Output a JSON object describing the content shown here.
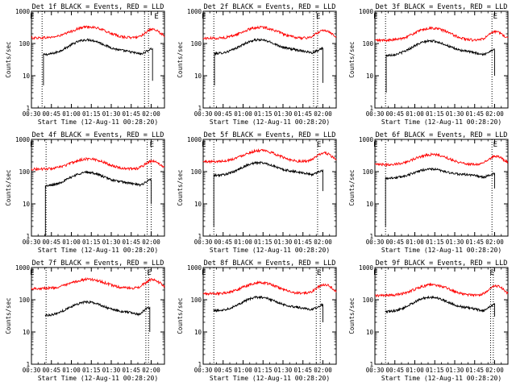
{
  "chart_data": [
    {
      "type": "line",
      "title": "Det 1f BLACK = Events, RED = LLD",
      "xlabel": "Start Time (12-Aug-11 00:28:20)",
      "ylabel": "Counts/sec",
      "yscale": "log",
      "ylim": [
        1,
        1000
      ],
      "yticks": [
        "1",
        "10",
        "100",
        "1000"
      ],
      "xticks": [
        "00:30",
        "00:45",
        "01:00",
        "01:15",
        "01:30",
        "01:45",
        "02:00"
      ],
      "xrange_minutes": [
        30,
        130
      ],
      "markers": [
        {
          "label": "E",
          "minute": 30.5
        },
        {
          "label": "E",
          "minute": 124
        }
      ],
      "vlines_minutes": [
        38,
        115,
        118
      ],
      "series": [
        {
          "name": "Events",
          "color": "#000000",
          "start": 39,
          "end": 121,
          "base": 44,
          "peak": 130,
          "drop_to": 5,
          "drop_end": 7,
          "end_rise": 85
        },
        {
          "name": "LLD",
          "color": "#ff0000",
          "start": 30,
          "end": 130,
          "base": 150,
          "peak": 330,
          "late_peak": 270,
          "end_val": 200
        }
      ]
    },
    {
      "type": "line",
      "title": "Det 2f BLACK = Events, RED = LLD",
      "xlabel": "Start Time (12-Aug-11 00:28:20)",
      "ylabel": "Counts/sec",
      "yscale": "log",
      "ylim": [
        1,
        1000
      ],
      "yticks": [
        "1",
        "10",
        "100",
        "1000"
      ],
      "xticks": [
        "00:30",
        "00:45",
        "01:00",
        "01:15",
        "01:30",
        "01:45",
        "02:00"
      ],
      "xrange_minutes": [
        30,
        130
      ],
      "markers": [
        {
          "label": "E",
          "minute": 30.5
        },
        {
          "label": "E",
          "minute": 116.5
        }
      ],
      "vlines_minutes": [
        38,
        113,
        116
      ],
      "series": [
        {
          "name": "Events",
          "color": "#000000",
          "start": 38.5,
          "end": 120,
          "base": 48,
          "peak": 130,
          "drop_to": 5,
          "drop_end": 6,
          "end_rise": 85
        },
        {
          "name": "LLD",
          "color": "#ff0000",
          "start": 30,
          "end": 130,
          "base": 145,
          "peak": 320,
          "late_peak": 260,
          "end_val": 190
        }
      ]
    },
    {
      "type": "line",
      "title": "Det 3f BLACK = Events, RED = LLD",
      "xlabel": "Start Time (12-Aug-11 00:28:20)",
      "ylabel": "Counts/sec",
      "yscale": "log",
      "ylim": [
        1,
        1000
      ],
      "yticks": [
        "1",
        "10",
        "100",
        "1000"
      ],
      "xticks": [
        "00:30",
        "00:45",
        "01:00",
        "01:15",
        "01:30",
        "01:45",
        "02:00"
      ],
      "xrange_minutes": [
        30,
        130
      ],
      "markers": [
        {
          "label": "E",
          "minute": 30.5
        },
        {
          "label": "E",
          "minute": 120.5
        }
      ],
      "vlines_minutes": [
        38,
        118
      ],
      "series": [
        {
          "name": "Events",
          "color": "#000000",
          "start": 38.5,
          "end": 120,
          "base": 42,
          "peak": 120,
          "drop_to": 3,
          "drop_end": 10,
          "end_rise": 80
        },
        {
          "name": "LLD",
          "color": "#ff0000",
          "start": 30,
          "end": 130,
          "base": 125,
          "peak": 300,
          "late_peak": 230,
          "end_val": 180
        }
      ]
    },
    {
      "type": "line",
      "title": "Det 4f BLACK = Events, RED = LLD",
      "xlabel": "Start Time (12-Aug-11 00:28:20)",
      "ylabel": "Counts/sec",
      "yscale": "log",
      "ylim": [
        1,
        1000
      ],
      "yticks": [
        "1",
        "10",
        "100",
        "1000"
      ],
      "xticks": [
        "00:30",
        "00:45",
        "01:00",
        "01:15",
        "01:30",
        "01:45",
        "02:00"
      ],
      "xrange_minutes": [
        30,
        130
      ],
      "markers": [
        {
          "label": "E",
          "minute": 30.5
        },
        {
          "label": "E",
          "minute": 120.5
        }
      ],
      "vlines_minutes": [
        41,
        117,
        120
      ],
      "series": [
        {
          "name": "Events",
          "color": "#000000",
          "start": 40.5,
          "end": 120,
          "base": 35,
          "peak": 95,
          "drop_to": 1,
          "drop_end": 10,
          "end_rise": 70
        },
        {
          "name": "LLD",
          "color": "#ff0000",
          "start": 30,
          "end": 130,
          "base": 120,
          "peak": 250,
          "late_peak": 210,
          "end_val": 160
        }
      ]
    },
    {
      "type": "line",
      "title": "Det 5f BLACK = Events, RED = LLD",
      "xlabel": "Start Time (12-Aug-11 00:28:20)",
      "ylabel": "Counts/sec",
      "yscale": "log",
      "ylim": [
        1,
        1000
      ],
      "yticks": [
        "1",
        "10",
        "100",
        "1000"
      ],
      "xticks": [
        "00:30",
        "00:45",
        "01:00",
        "01:15",
        "01:30",
        "01:45",
        "02:00"
      ],
      "xrange_minutes": [
        30,
        130
      ],
      "markers": [
        {
          "label": "E",
          "minute": 30.5
        },
        {
          "label": "E",
          "minute": 117
        }
      ],
      "vlines_minutes": [
        38,
        116
      ],
      "series": [
        {
          "name": "Events",
          "color": "#000000",
          "start": 38,
          "end": 120,
          "base": 75,
          "peak": 190,
          "drop_to": 2,
          "drop_end": 25,
          "end_rise": 130
        },
        {
          "name": "LLD",
          "color": "#ff0000",
          "start": 30,
          "end": 130,
          "base": 205,
          "peak": 450,
          "late_peak": 380,
          "end_val": 260
        }
      ]
    },
    {
      "type": "line",
      "title": "Det 6f BLACK = Events, RED = LLD",
      "xlabel": "Start Time (12-Aug-11 00:28:20)",
      "ylabel": "Counts/sec",
      "yscale": "log",
      "ylim": [
        1,
        1000
      ],
      "yticks": [
        "1",
        "10",
        "100",
        "1000"
      ],
      "xticks": [
        "00:30",
        "00:45",
        "01:00",
        "01:15",
        "01:30",
        "01:45",
        "02:00"
      ],
      "xrange_minutes": [
        30,
        130
      ],
      "markers": [
        {
          "label": "E",
          "minute": 30.5
        },
        {
          "label": "E",
          "minute": 120.5
        }
      ],
      "vlines_minutes": [
        38,
        118
      ],
      "series": [
        {
          "name": "Events",
          "color": "#000000",
          "start": 38,
          "end": 120,
          "base": 62,
          "peak": 120,
          "drop_to": 2,
          "drop_end": 30,
          "end_rise": 100
        },
        {
          "name": "LLD",
          "color": "#ff0000",
          "start": 30,
          "end": 130,
          "base": 165,
          "peak": 340,
          "late_peak": 300,
          "end_val": 230
        }
      ]
    },
    {
      "type": "line",
      "title": "Det 7f BLACK = Events, RED = LLD",
      "xlabel": "Start Time (12-Aug-11 00:28:20)",
      "ylabel": "Counts/sec",
      "yscale": "log",
      "ylim": [
        1,
        1000
      ],
      "yticks": [
        "1",
        "10",
        "100",
        "1000"
      ],
      "xticks": [
        "00:30",
        "00:45",
        "01:00",
        "01:15",
        "01:30",
        "01:45",
        "02:00"
      ],
      "xrange_minutes": [
        30,
        130
      ],
      "markers": [
        {
          "label": "E",
          "minute": 30.5
        },
        {
          "label": "E",
          "minute": 118.5
        }
      ],
      "vlines_minutes": [
        41,
        116,
        118
      ],
      "series": [
        {
          "name": "Events",
          "color": "#000000",
          "start": 40.5,
          "end": 119,
          "base": 32,
          "peak": 85,
          "drop_to": 32,
          "drop_end": 10,
          "end_rise": 75
        },
        {
          "name": "LLD",
          "color": "#ff0000",
          "start": 30,
          "end": 130,
          "base": 225,
          "peak": 430,
          "late_peak": 420,
          "end_val": 290
        }
      ]
    },
    {
      "type": "line",
      "title": "Det 8f BLACK = Events, RED = LLD",
      "xlabel": "Start Time (12-Aug-11 00:28:20)",
      "ylabel": "Counts/sec",
      "yscale": "log",
      "ylim": [
        1,
        1000
      ],
      "yticks": [
        "1",
        "10",
        "100",
        "1000"
      ],
      "xticks": [
        "00:30",
        "00:45",
        "01:00",
        "01:15",
        "01:30",
        "01:45",
        "02:00"
      ],
      "xrange_minutes": [
        30,
        130
      ],
      "markers": [
        {
          "label": "E",
          "minute": 30.5
        },
        {
          "label": "E",
          "minute": 117
        }
      ],
      "vlines_minutes": [
        38,
        115,
        118
      ],
      "series": [
        {
          "name": "Events",
          "color": "#000000",
          "start": 38,
          "end": 120,
          "base": 45,
          "peak": 120,
          "drop_to": 45,
          "drop_end": 20,
          "end_rise": 85
        },
        {
          "name": "LLD",
          "color": "#ff0000",
          "start": 30,
          "end": 130,
          "base": 155,
          "peak": 340,
          "late_peak": 300,
          "end_val": 200
        }
      ]
    },
    {
      "type": "line",
      "title": "Det 9f BLACK = Events, RED = LLD",
      "xlabel": "Start Time (12-Aug-11 00:28:20)",
      "ylabel": "Counts/sec",
      "yscale": "log",
      "ylim": [
        1,
        1000
      ],
      "yticks": [
        "1",
        "10",
        "100",
        "1000"
      ],
      "xticks": [
        "00:30",
        "00:45",
        "01:00",
        "01:15",
        "01:30",
        "01:45",
        "02:00"
      ],
      "xrange_minutes": [
        30,
        130
      ],
      "markers": [
        {
          "label": "E",
          "minute": 30.5
        },
        {
          "label": "E",
          "minute": 118
        }
      ],
      "vlines_minutes": [
        38,
        117,
        119
      ],
      "series": [
        {
          "name": "Events",
          "color": "#000000",
          "start": 38,
          "end": 120,
          "base": 42,
          "peak": 120,
          "drop_to": 42,
          "drop_end": 30,
          "end_rise": 90
        },
        {
          "name": "LLD",
          "color": "#ff0000",
          "start": 30,
          "end": 130,
          "base": 135,
          "peak": 290,
          "late_peak": 270,
          "end_val": 180
        }
      ]
    }
  ]
}
